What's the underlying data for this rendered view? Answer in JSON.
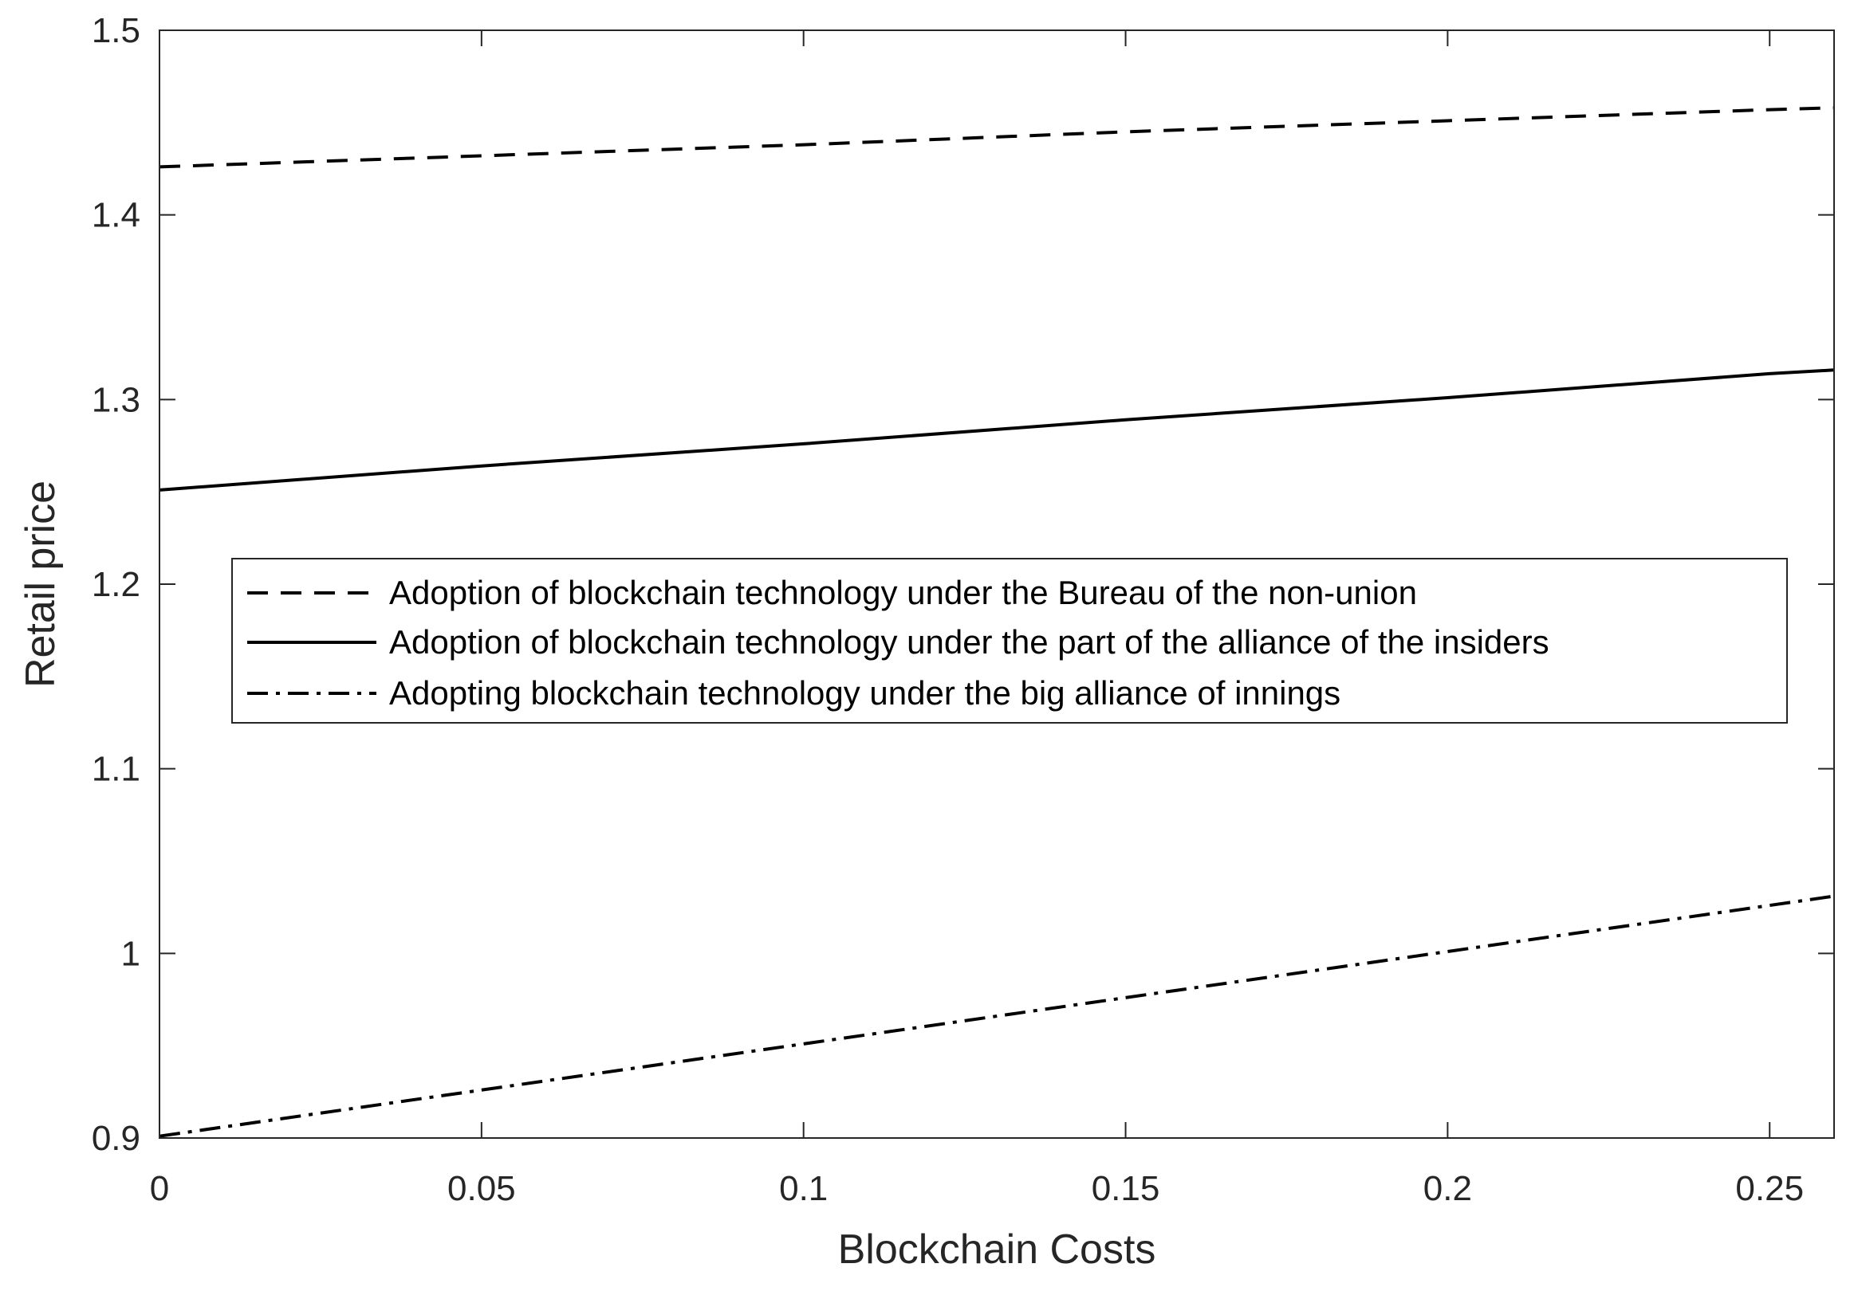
{
  "chart_data": {
    "type": "line",
    "xlabel": "Blockchain Costs",
    "ylabel": "Retail price",
    "xlim": [
      0,
      0.26
    ],
    "ylim": [
      0.9,
      1.5
    ],
    "xticks": [
      0,
      0.05,
      0.1,
      0.15,
      0.2,
      0.25
    ],
    "xtick_labels": [
      "0",
      "0.05",
      "0.1",
      "0.15",
      "0.2",
      "0.25"
    ],
    "yticks": [
      0.9,
      1.0,
      1.1,
      1.2,
      1.3,
      1.4,
      1.5
    ],
    "ytick_labels": [
      "0.9",
      "1",
      "1.1",
      "1.2",
      "1.3",
      "1.4",
      "1.5"
    ],
    "grid": false,
    "legend_position": "center-left",
    "x": [
      0,
      0.05,
      0.1,
      0.15,
      0.2,
      0.25,
      0.26
    ],
    "series": [
      {
        "name": "Adoption of blockchain technology under the Bureau of the non-union",
        "style": "dashed",
        "color": "#000000",
        "values": [
          1.426,
          1.432,
          1.438,
          1.445,
          1.451,
          1.457,
          1.458
        ]
      },
      {
        "name": "Adoption of blockchain technology under the part of the alliance of the insiders",
        "style": "solid",
        "color": "#000000",
        "values": [
          1.251,
          1.264,
          1.276,
          1.289,
          1.301,
          1.314,
          1.316
        ]
      },
      {
        "name": "Adopting blockchain technology under the big alliance of innings",
        "style": "dashdot",
        "color": "#000000",
        "values": [
          0.901,
          0.926,
          0.951,
          0.976,
          1.001,
          1.026,
          1.031
        ]
      }
    ]
  }
}
